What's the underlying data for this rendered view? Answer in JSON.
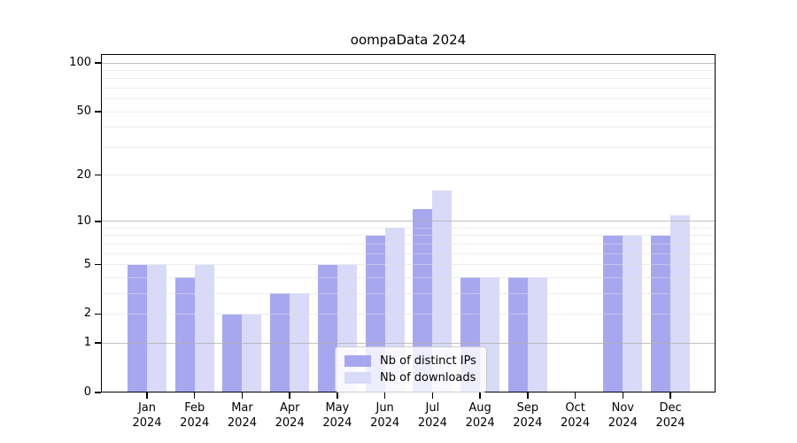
{
  "figure": {
    "title": "oompaData 2024"
  },
  "chart_data": {
    "type": "bar",
    "title": "oompaData 2024",
    "categories": [
      "Jan",
      "Feb",
      "Mar",
      "Apr",
      "May",
      "Jun",
      "Jul",
      "Aug",
      "Sep",
      "Oct",
      "Nov",
      "Dec"
    ],
    "category_year": "2024",
    "series": [
      {
        "name": "Nb of distinct IPs",
        "color": "#a7a7f0",
        "values": [
          5,
          4,
          2,
          3,
          5,
          8,
          12,
          4,
          4,
          0,
          8,
          8
        ]
      },
      {
        "name": "Nb of downloads",
        "color": "#d9d9f8",
        "values": [
          5,
          5,
          2,
          3,
          5,
          9,
          16,
          4,
          4,
          0,
          8,
          11
        ]
      }
    ],
    "xlabel": "",
    "ylabel": "",
    "yscale": "log1p",
    "y_ticks": [
      0,
      1,
      2,
      5,
      10,
      20,
      50,
      100
    ],
    "ylim": [
      0,
      113
    ],
    "grid": true,
    "grid_minor_values": [
      2,
      3,
      4,
      5,
      6,
      7,
      8,
      9,
      20,
      30,
      40,
      50,
      60,
      70,
      80,
      90
    ],
    "grid_major_values": [
      1,
      10,
      100
    ],
    "grid_minor_color": "#ececec",
    "grid_major_color": "#c6c6c6",
    "spine_color": "#000000",
    "legend_position": "bottom-center"
  }
}
